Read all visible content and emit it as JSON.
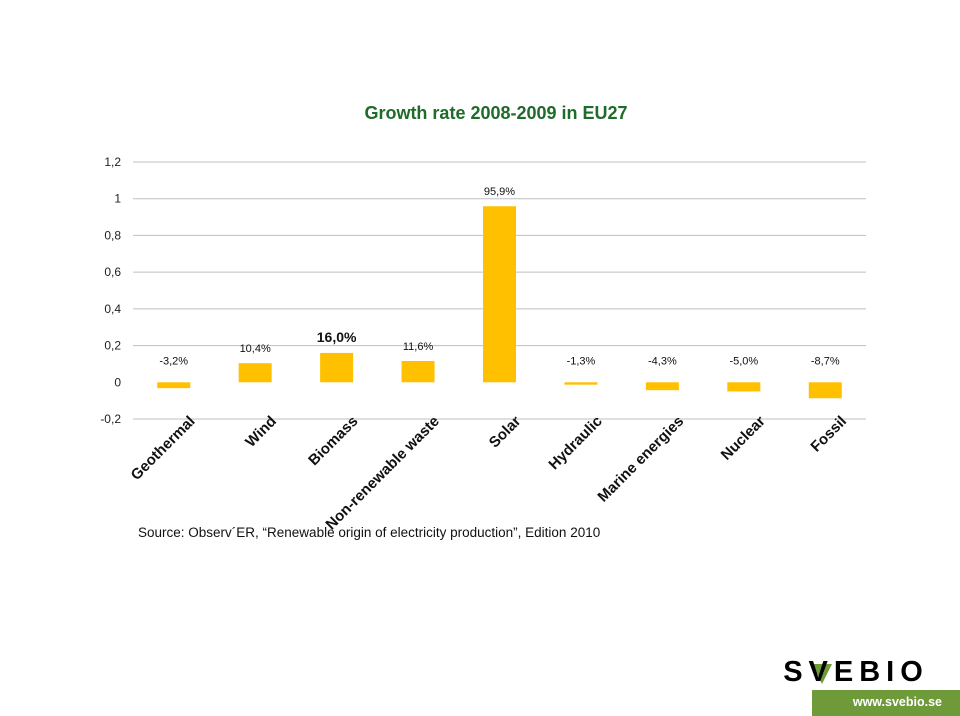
{
  "chart_data": {
    "type": "bar",
    "title": "Growth rate 2008-2009 in EU27",
    "title_color": "#1e6b2a",
    "bar_color": "#ffc000",
    "gridline_color": "#bfbfbf",
    "categories": [
      "Geothermal",
      "Wind",
      "Biomass",
      "Non-renewable waste",
      "Solar",
      "Hydraulic",
      "Marine energies",
      "Nuclear",
      "Fossil"
    ],
    "values": [
      -0.032,
      0.104,
      0.16,
      0.116,
      0.959,
      -0.013,
      -0.043,
      -0.05,
      -0.087
    ],
    "data_labels": [
      "-3,2%",
      "10,4%",
      "16,0%",
      "11,6%",
      "95,9%",
      "-1,3%",
      "-4,3%",
      "-5,0%",
      "-8,7%"
    ],
    "emphasized_label_index": 2,
    "y_ticks": [
      -0.2,
      0,
      0.2,
      0.4,
      0.6,
      0.8,
      1,
      1.2
    ],
    "y_tick_labels": [
      "-0,2",
      "0",
      "0,2",
      "0,4",
      "0,6",
      "0,8",
      "1",
      "1,2"
    ],
    "ylim": [
      -0.2,
      1.2
    ],
    "xlabel": "",
    "ylabel": "",
    "grid": true,
    "legend": "none"
  },
  "source_text": "Source: Observ´ER, “Renewable origin of electricity production”, Edition 2010",
  "logo": {
    "name": "SVEBIO",
    "website": "www.svebio.se",
    "accent_color": "#6f9a3a"
  }
}
